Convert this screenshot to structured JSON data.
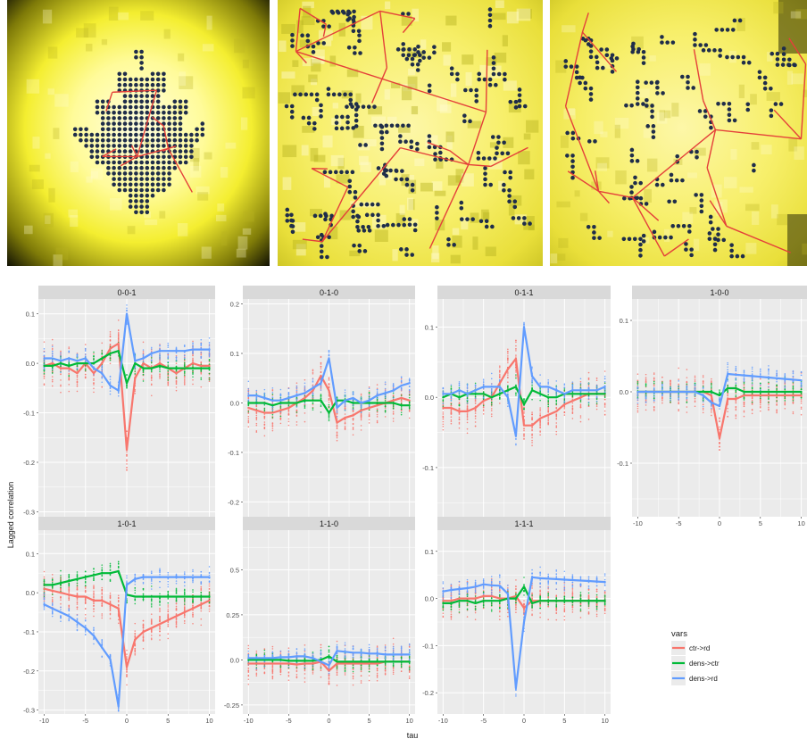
{
  "maps": [
    {
      "name": "map-1"
    },
    {
      "name": "map-2"
    },
    {
      "name": "map-3"
    }
  ],
  "chart_data": {
    "type": "line",
    "facet_labels": [
      "0-0-1",
      "0-1-0",
      "0-1-1",
      "1-0-0",
      "1-0-1",
      "1-1-0",
      "1-1-1"
    ],
    "xlabel": "tau",
    "ylabel": "Lagged correlation",
    "x_ticks": [
      -10,
      -5,
      0,
      5,
      10
    ],
    "legend": {
      "title": "vars",
      "position": "right",
      "entries": [
        "ctr->rd",
        "dens->ctr",
        "dens->rd"
      ]
    },
    "colors": {
      "ctr->rd": "#F8766D",
      "dens->ctr": "#00BA38",
      "dens->rd": "#619CFF",
      "panel_bg": "#EBEBEB",
      "strip_bg": "#D9D9D9",
      "grid": "#FFFFFF"
    },
    "x": [
      -10,
      -9,
      -8,
      -7,
      -6,
      -5,
      -4,
      -3,
      -2,
      -1,
      0,
      1,
      2,
      3,
      4,
      5,
      6,
      7,
      8,
      9,
      10
    ],
    "panels": [
      {
        "label": "0-0-1",
        "ylim": [
          -0.31,
          0.13
        ],
        "y_ticks": [
          -0.3,
          -0.2,
          -0.1,
          0.0,
          0.1
        ],
        "series": [
          {
            "name": "ctr->rd",
            "values": [
              -0.005,
              0.0,
              -0.01,
              -0.01,
              -0.02,
              0.0,
              -0.02,
              0.0,
              0.03,
              0.04,
              -0.175,
              -0.03,
              0.0,
              -0.01,
              0.0,
              -0.01,
              -0.02,
              -0.01,
              0.0,
              -0.005,
              -0.005
            ]
          },
          {
            "name": "dens->ctr",
            "values": [
              -0.005,
              -0.005,
              0.0,
              -0.005,
              0.0,
              0.0,
              0.0,
              0.01,
              0.02,
              0.025,
              -0.04,
              0.0,
              -0.01,
              -0.01,
              -0.005,
              -0.01,
              -0.01,
              -0.01,
              -0.01,
              -0.01,
              -0.01
            ]
          },
          {
            "name": "dens->rd",
            "values": [
              0.01,
              0.01,
              0.005,
              0.01,
              0.005,
              0.01,
              -0.01,
              -0.02,
              -0.045,
              -0.055,
              0.1,
              0.005,
              0.01,
              0.02,
              0.025,
              0.025,
              0.025,
              0.025,
              0.028,
              0.028,
              0.028
            ]
          }
        ]
      },
      {
        "label": "0-1-0",
        "ylim": [
          -0.23,
          0.21
        ],
        "y_ticks": [
          -0.2,
          -0.1,
          0.0,
          0.1,
          0.2
        ],
        "series": [
          {
            "name": "ctr->rd",
            "values": [
              -0.01,
              -0.015,
              -0.02,
              -0.02,
              -0.015,
              -0.01,
              0.0,
              0.01,
              0.025,
              0.055,
              0.025,
              -0.04,
              -0.03,
              -0.025,
              -0.015,
              -0.01,
              -0.005,
              0.0,
              0.005,
              0.01,
              0.005
            ]
          },
          {
            "name": "dens->ctr",
            "values": [
              0.0,
              0.0,
              0.0,
              -0.005,
              0.0,
              0.0,
              0.0,
              0.005,
              0.005,
              0.005,
              -0.02,
              0.005,
              0.005,
              0.0,
              0.0,
              0.0,
              0.0,
              0.0,
              0.0,
              -0.005,
              -0.005
            ]
          },
          {
            "name": "dens->rd",
            "values": [
              0.015,
              0.015,
              0.01,
              0.005,
              0.005,
              0.01,
              0.015,
              0.02,
              0.03,
              0.04,
              0.09,
              -0.01,
              0.005,
              0.01,
              0.0,
              0.005,
              0.015,
              0.02,
              0.025,
              0.035,
              0.04
            ]
          }
        ]
      },
      {
        "label": "0-1-1",
        "ylim": [
          -0.17,
          0.14
        ],
        "y_ticks": [
          -0.1,
          0.0,
          0.1
        ],
        "series": [
          {
            "name": "ctr->rd",
            "values": [
              -0.015,
              -0.015,
              -0.02,
              -0.02,
              -0.015,
              -0.005,
              0.0,
              0.02,
              0.04,
              0.055,
              -0.04,
              -0.04,
              -0.03,
              -0.025,
              -0.02,
              -0.01,
              -0.005,
              0.0,
              0.005,
              0.005,
              0.005
            ]
          },
          {
            "name": "dens->ctr",
            "values": [
              0.0,
              0.005,
              0.0,
              0.005,
              0.005,
              0.005,
              0.0,
              0.005,
              0.01,
              0.015,
              -0.01,
              0.01,
              0.005,
              0.0,
              0.0,
              0.005,
              0.005,
              0.005,
              0.005,
              0.005,
              0.005
            ]
          },
          {
            "name": "dens->rd",
            "values": [
              0.005,
              0.005,
              0.01,
              0.005,
              0.01,
              0.015,
              0.015,
              0.015,
              0.0,
              -0.055,
              0.1,
              0.03,
              0.015,
              0.015,
              0.01,
              0.005,
              0.01,
              0.01,
              0.01,
              0.01,
              0.015
            ]
          }
        ]
      },
      {
        "label": "1-0-0",
        "ylim": [
          -0.175,
          0.13
        ],
        "y_ticks": [
          -0.1,
          0.0,
          0.1
        ],
        "series": [
          {
            "name": "ctr->rd",
            "values": [
              0.0,
              0.0,
              0.0,
              0.0,
              0.0,
              0.0,
              0.0,
              0.0,
              0.0,
              -0.005,
              -0.065,
              -0.01,
              -0.01,
              -0.005,
              -0.005,
              -0.005,
              -0.005,
              -0.005,
              -0.005,
              -0.005,
              -0.005
            ]
          },
          {
            "name": "dens->ctr",
            "values": [
              0.0,
              0.0,
              0.0,
              0.0,
              0.0,
              0.0,
              0.0,
              0.0,
              0.0,
              0.0,
              -0.005,
              0.005,
              0.005,
              0.0,
              0.0,
              0.0,
              0.0,
              0.0,
              0.0,
              0.0,
              0.0
            ]
          },
          {
            "name": "dens->rd",
            "values": [
              0.0,
              0.0,
              0.0,
              0.0,
              0.0,
              0.0,
              0.0,
              0.0,
              -0.005,
              -0.015,
              -0.02,
              0.025,
              0.024,
              0.023,
              0.022,
              0.021,
              0.02,
              0.019,
              0.018,
              0.017,
              0.016
            ]
          }
        ]
      },
      {
        "label": "1-0-1",
        "ylim": [
          -0.31,
          0.16
        ],
        "y_ticks": [
          -0.3,
          -0.2,
          -0.1,
          0.0,
          0.1
        ],
        "series": [
          {
            "name": "ctr->rd",
            "values": [
              0.01,
              0.005,
              0.0,
              -0.005,
              -0.01,
              -0.01,
              -0.02,
              -0.02,
              -0.03,
              -0.04,
              -0.19,
              -0.12,
              -0.1,
              -0.09,
              -0.08,
              -0.07,
              -0.06,
              -0.05,
              -0.04,
              -0.03,
              -0.02
            ]
          },
          {
            "name": "dens->ctr",
            "values": [
              0.02,
              0.02,
              0.025,
              0.03,
              0.035,
              0.04,
              0.045,
              0.05,
              0.05,
              0.055,
              -0.005,
              -0.01,
              -0.01,
              -0.01,
              -0.01,
              -0.01,
              -0.01,
              -0.01,
              -0.01,
              -0.01,
              -0.01
            ]
          },
          {
            "name": "dens->rd",
            "values": [
              -0.03,
              -0.04,
              -0.05,
              -0.06,
              -0.075,
              -0.09,
              -0.11,
              -0.14,
              -0.17,
              -0.29,
              0.02,
              0.035,
              0.04,
              0.04,
              0.04,
              0.04,
              0.04,
              0.04,
              0.04,
              0.04,
              0.04
            ]
          }
        ]
      },
      {
        "label": "1-1-0",
        "ylim": [
          -0.3,
          0.72
        ],
        "y_ticks": [
          -0.25,
          0.0,
          0.25,
          0.5
        ],
        "series": [
          {
            "name": "ctr->rd",
            "values": [
              -0.02,
              -0.02,
              -0.02,
              -0.02,
              -0.02,
              -0.02,
              -0.025,
              -0.02,
              -0.02,
              -0.01,
              -0.06,
              -0.02,
              -0.02,
              -0.02,
              -0.02,
              -0.02,
              -0.02,
              -0.01,
              -0.01,
              -0.01,
              -0.01
            ]
          },
          {
            "name": "dens->ctr",
            "values": [
              0.0,
              0.0,
              0.0,
              0.0,
              0.0,
              -0.005,
              -0.005,
              -0.005,
              -0.005,
              0.0,
              0.02,
              -0.01,
              -0.01,
              -0.01,
              -0.01,
              -0.01,
              -0.01,
              -0.01,
              -0.01,
              -0.01,
              -0.01
            ]
          },
          {
            "name": "dens->rd",
            "values": [
              0.01,
              0.01,
              0.01,
              0.01,
              0.015,
              0.015,
              0.02,
              0.02,
              0.01,
              -0.01,
              -0.03,
              0.05,
              0.045,
              0.04,
              0.04,
              0.035,
              0.035,
              0.03,
              0.03,
              0.03,
              0.03
            ]
          }
        ]
      },
      {
        "label": "1-1-1",
        "ylim": [
          -0.245,
          0.145
        ],
        "y_ticks": [
          -0.2,
          -0.1,
          0.0,
          0.1
        ],
        "series": [
          {
            "name": "ctr->rd",
            "values": [
              -0.005,
              -0.005,
              0.0,
              0.0,
              0.0,
              0.005,
              0.005,
              0.0,
              0.0,
              0.005,
              -0.02,
              -0.005,
              -0.005,
              -0.005,
              -0.005,
              -0.005,
              -0.005,
              -0.005,
              -0.005,
              -0.005,
              -0.005
            ]
          },
          {
            "name": "dens->ctr",
            "values": [
              -0.01,
              -0.01,
              -0.005,
              -0.005,
              -0.01,
              -0.005,
              -0.005,
              -0.005,
              0.0,
              0.0,
              0.025,
              -0.01,
              -0.005,
              -0.005,
              -0.005,
              -0.005,
              -0.005,
              -0.005,
              -0.005,
              -0.005,
              -0.005
            ]
          },
          {
            "name": "dens->rd",
            "values": [
              0.015,
              0.018,
              0.02,
              0.022,
              0.025,
              0.03,
              0.028,
              0.027,
              0.01,
              -0.19,
              -0.05,
              0.045,
              0.043,
              0.042,
              0.041,
              0.04,
              0.039,
              0.038,
              0.037,
              0.036,
              0.035
            ]
          }
        ]
      }
    ]
  }
}
